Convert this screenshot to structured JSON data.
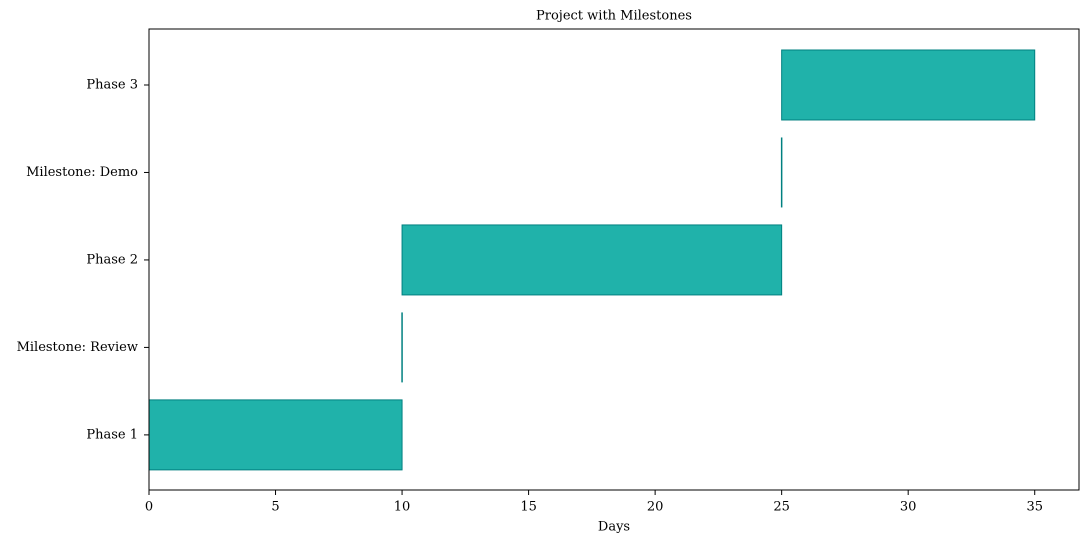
{
  "chart_data": {
    "type": "gantt",
    "title": "Project with Milestones",
    "x_label": "Days",
    "categories": [
      "Phase 1",
      "Milestone: Review",
      "Phase 2",
      "Milestone: Demo",
      "Phase 3"
    ],
    "starts": [
      0,
      10,
      10,
      25,
      25
    ],
    "durations": [
      10,
      0,
      15,
      0,
      10
    ],
    "color": "#20b2aa",
    "edge_color": "#008080",
    "xlim": [
      0,
      36.75
    ],
    "xticks": [
      0,
      5,
      10,
      15,
      20,
      25,
      30,
      35
    ]
  }
}
